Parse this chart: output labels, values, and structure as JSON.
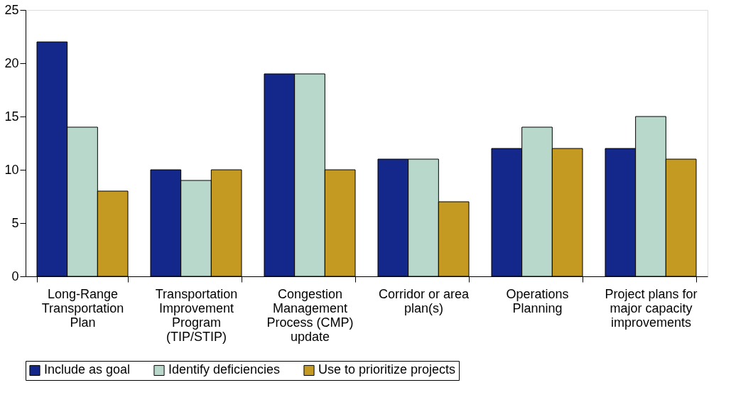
{
  "chart_data": {
    "type": "bar",
    "categories": [
      "Long-Range Transportation Plan",
      "Transportation Improvement Program (TIP/STIP)",
      "Congestion Management Process (CMP) update",
      "Corridor or area plan(s)",
      "Operations Planning",
      "Project plans for major capacity improvements"
    ],
    "series": [
      {
        "name": "Include as goal",
        "color": "#13288a",
        "values": [
          22,
          10,
          19,
          11,
          12,
          12
        ]
      },
      {
        "name": "Identify deficiencies",
        "color": "#b8d8cc",
        "values": [
          14,
          9,
          19,
          11,
          14,
          15
        ]
      },
      {
        "name": "Use to prioritize projects",
        "color": "#c49a23",
        "values": [
          8,
          10,
          10,
          7,
          12,
          11
        ]
      }
    ],
    "ylim": [
      0,
      25
    ],
    "yticks": [
      0,
      5,
      10,
      15,
      20,
      25
    ],
    "grid": false,
    "legend": "bottom"
  }
}
